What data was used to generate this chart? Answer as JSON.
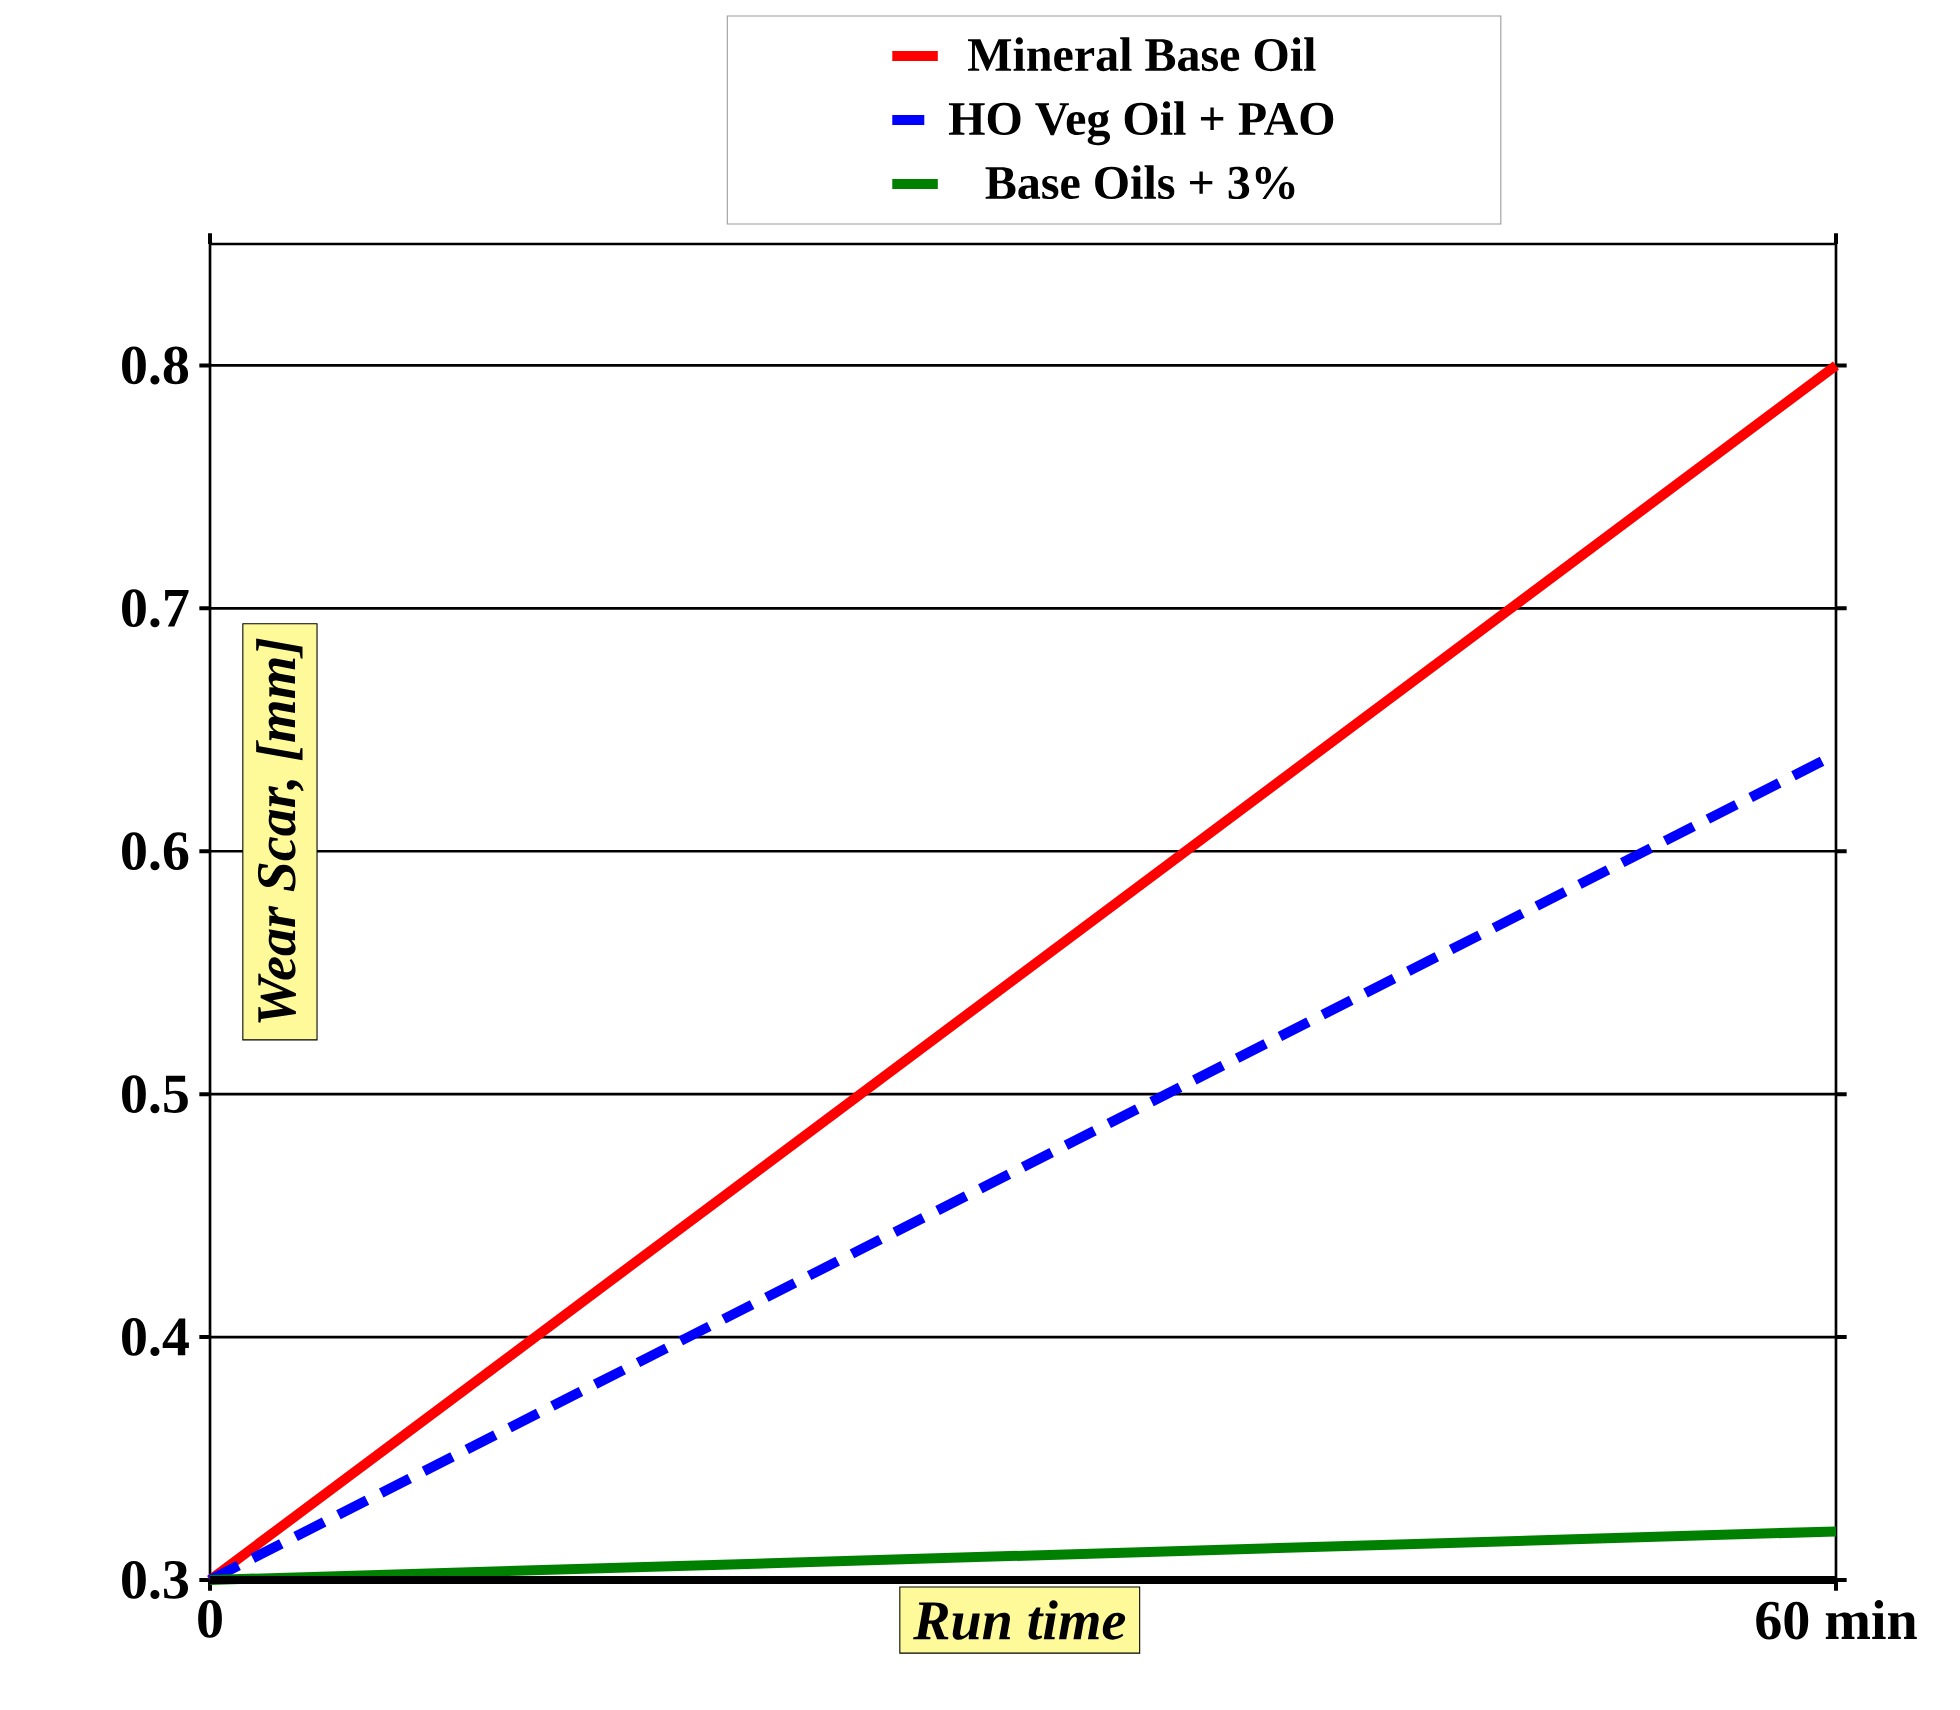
{
  "chart_data": {
    "type": "line",
    "xlabel": "Run time",
    "ylabel": "Wear Scar, [mm]",
    "x": [
      0,
      60
    ],
    "xlim": [
      0,
      60
    ],
    "xticks": [
      0,
      {
        "value": 60,
        "label": "60 min"
      }
    ],
    "ylim": [
      0.3,
      0.85
    ],
    "yticks": [
      0.3,
      0.4,
      0.5,
      0.6,
      0.7,
      0.8
    ],
    "grid": "y",
    "legend": "top",
    "series": [
      {
        "name": "Mineral Base Oil",
        "color": "#ff0000",
        "values": [
          0.3,
          0.8
        ],
        "line_style": "solid"
      },
      {
        "name": "HO Veg Oil + PAO",
        "color": "#0000ff",
        "values": [
          0.3,
          0.64
        ],
        "line_style": "dashed"
      },
      {
        "name": "Base Oils + 3%",
        "color": "#008000",
        "values": [
          0.3,
          0.32
        ],
        "line_style": "solid"
      }
    ]
  }
}
